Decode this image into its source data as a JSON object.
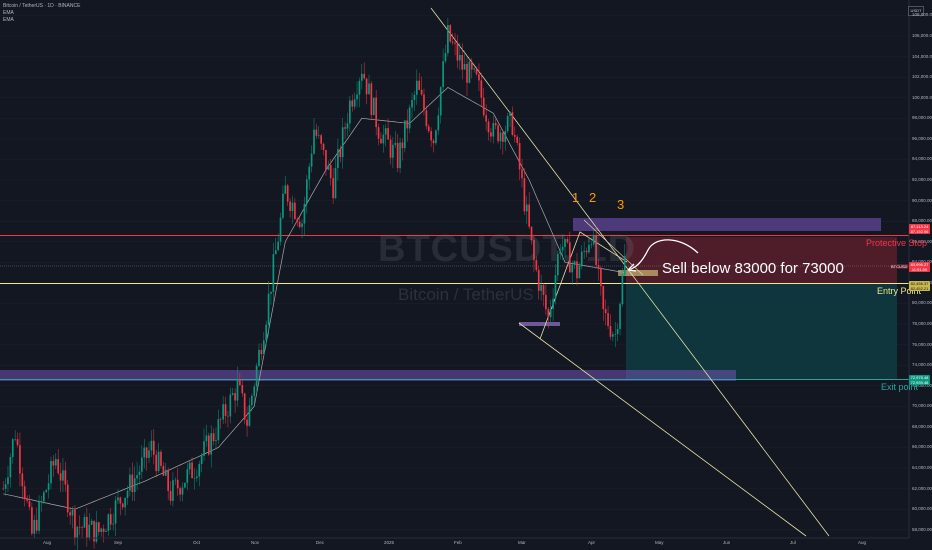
{
  "legend": {
    "symbol": "Bitcoin / TetherUS · 1D · BINANCE",
    "ema1": "EMA",
    "ema2": "EMA"
  },
  "watermark": {
    "ticker": "BTCUSDT, 1D",
    "name": "Bitcoin / TetherUS"
  },
  "ticker_box": "USDT",
  "annotations": {
    "wave_1": "1",
    "wave_2": "2",
    "wave_3": "3",
    "trade_note": "Sell below 83000 for 73000",
    "protective_stop": "Protective Stop",
    "entry_point": "Entry Point",
    "exit_point": "Exit point"
  },
  "price_tags": {
    "stop": {
      "line1": "87,113.24",
      "line2": "87,192.96"
    },
    "current": {
      "line1": "83,996.27",
      "line2": "11:51:59"
    },
    "symbol": "BTCUSDT",
    "entry": {
      "line1": "82,456.37",
      "line2": "82,452.21"
    },
    "exit": {
      "line1": "72,975.48",
      "line2": "72,939.48"
    }
  },
  "colors": {
    "background": "#131722",
    "up": "#089981",
    "down": "#f23645",
    "stop_zone": "#5b1f2a",
    "target_zone": "#0e3a3f",
    "stop_line": "#f23645",
    "entry_line": "#f0e68c",
    "exit_line": "#26a69a",
    "supply_box": "#7e57c2",
    "annotation": "#ff9800",
    "ema_slow": "#a9a9a9"
  },
  "chart_data": {
    "type": "candlestick",
    "title": "Bitcoin / TetherUS",
    "symbol": "BTCUSDT",
    "interval": "1D",
    "exchange": "BINANCE",
    "x_labels": [
      "Aug",
      "Sep",
      "Oct",
      "Nov",
      "Dec",
      "2025",
      "Feb",
      "Mar",
      "Apr",
      "May",
      "Jun",
      "Jul",
      "Aug"
    ],
    "y_ticks": [
      108000,
      106000,
      104000,
      102000,
      100000,
      98000,
      96000,
      94000,
      92000,
      90000,
      88000,
      86000,
      84000,
      82000,
      80000,
      78000,
      76000,
      74000,
      72000,
      70000,
      68000,
      66000,
      64000,
      62000,
      60000,
      58000
    ],
    "y_tick_labels": [
      "108,000.00",
      "106,000.00",
      "104,000.00",
      "102,000.00",
      "100,000.00",
      "98,000.00",
      "96,000.00",
      "94,000.00",
      "92,000.00",
      "90,000.00",
      "88,000.00",
      "86,000.00",
      "84,000.00",
      "82,000.00",
      "80,000.00",
      "78,000.00",
      "76,000.00",
      "74,000.00",
      "72,000.00",
      "70,000.00",
      "68,000.00",
      "66,000.00",
      "64,000.00",
      "62,000.00",
      "60,000.00",
      "58,000.00"
    ],
    "ylim": [
      57200,
      109500
    ],
    "price_path": [
      {
        "i": 0,
        "p": 62000
      },
      {
        "i": 5,
        "p": 67500
      },
      {
        "i": 12,
        "p": 57500
      },
      {
        "i": 22,
        "p": 65000
      },
      {
        "i": 30,
        "p": 58500
      },
      {
        "i": 40,
        "p": 57800
      },
      {
        "i": 55,
        "p": 63000
      },
      {
        "i": 62,
        "p": 66000
      },
      {
        "i": 70,
        "p": 61500
      },
      {
        "i": 80,
        "p": 64000
      },
      {
        "i": 90,
        "p": 68000
      },
      {
        "i": 98,
        "p": 72000
      },
      {
        "i": 102,
        "p": 68500
      },
      {
        "i": 110,
        "p": 79000
      },
      {
        "i": 118,
        "p": 91000
      },
      {
        "i": 125,
        "p": 88000
      },
      {
        "i": 130,
        "p": 97000
      },
      {
        "i": 138,
        "p": 91500
      },
      {
        "i": 145,
        "p": 99500
      },
      {
        "i": 150,
        "p": 103000
      },
      {
        "i": 157,
        "p": 97000
      },
      {
        "i": 165,
        "p": 94000
      },
      {
        "i": 173,
        "p": 101000
      },
      {
        "i": 180,
        "p": 96000
      },
      {
        "i": 186,
        "p": 106000
      },
      {
        "i": 192,
        "p": 103000
      },
      {
        "i": 198,
        "p": 101500
      },
      {
        "i": 205,
        "p": 96500
      },
      {
        "i": 213,
        "p": 97500
      },
      {
        "i": 222,
        "p": 84000
      },
      {
        "i": 228,
        "p": 78500
      },
      {
        "i": 233,
        "p": 86000
      },
      {
        "i": 240,
        "p": 83000
      },
      {
        "i": 246,
        "p": 87000
      },
      {
        "i": 251,
        "p": 79000
      },
      {
        "i": 256,
        "p": 77000
      },
      {
        "i": 260,
        "p": 84200
      }
    ],
    "ema_fast": [
      {
        "i": 0,
        "p": 61500
      },
      {
        "i": 30,
        "p": 60000
      },
      {
        "i": 60,
        "p": 62800
      },
      {
        "i": 90,
        "p": 66000
      },
      {
        "i": 105,
        "p": 70000
      },
      {
        "i": 118,
        "p": 86000
      },
      {
        "i": 135,
        "p": 93000
      },
      {
        "i": 150,
        "p": 98000
      },
      {
        "i": 170,
        "p": 97500
      },
      {
        "i": 186,
        "p": 101000
      },
      {
        "i": 205,
        "p": 98500
      },
      {
        "i": 220,
        "p": 92000
      },
      {
        "i": 235,
        "p": 84000
      },
      {
        "i": 260,
        "p": 83000
      }
    ],
    "levels": {
      "protective_stop": 87192.96,
      "entry": 82456.37,
      "current": 83996.27,
      "exit": 72975.48
    },
    "trade": {
      "direction": "short",
      "entry_below": 83000,
      "target": 73000
    }
  }
}
